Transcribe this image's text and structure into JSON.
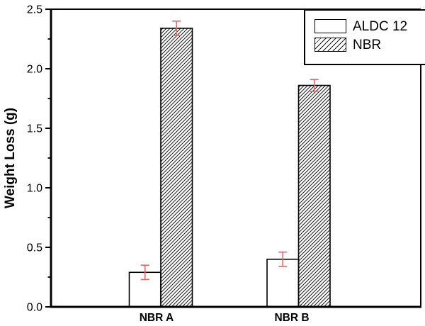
{
  "chart_data": {
    "type": "bar",
    "title": "",
    "xlabel": "",
    "ylabel": "Weight Loss (g)",
    "categories": [
      "NBR A",
      "NBR B"
    ],
    "series": [
      {
        "name": "ALDC 12",
        "fill": "plain",
        "values": [
          0.29,
          0.4
        ],
        "errors": [
          0.06,
          0.06
        ]
      },
      {
        "name": "NBR",
        "fill": "hatch",
        "values": [
          2.34,
          1.86
        ],
        "errors": [
          0.06,
          0.05
        ]
      }
    ],
    "ylim": [
      0,
      2.5
    ],
    "ytick_step": 0.5,
    "minor_tick_step": 0.25,
    "ytick_labels": [
      "0.0",
      "0.5",
      "1.0",
      "1.5",
      "2.0",
      "2.5"
    ],
    "grid": false,
    "legend_position": "top-right",
    "colors": {
      "axis": "#000000",
      "bar_border": "#000000",
      "bar_fill": "#ffffff",
      "hatch_line": "#1a1a1a",
      "error_bar": "#e06c6c",
      "text": "#000000"
    }
  }
}
